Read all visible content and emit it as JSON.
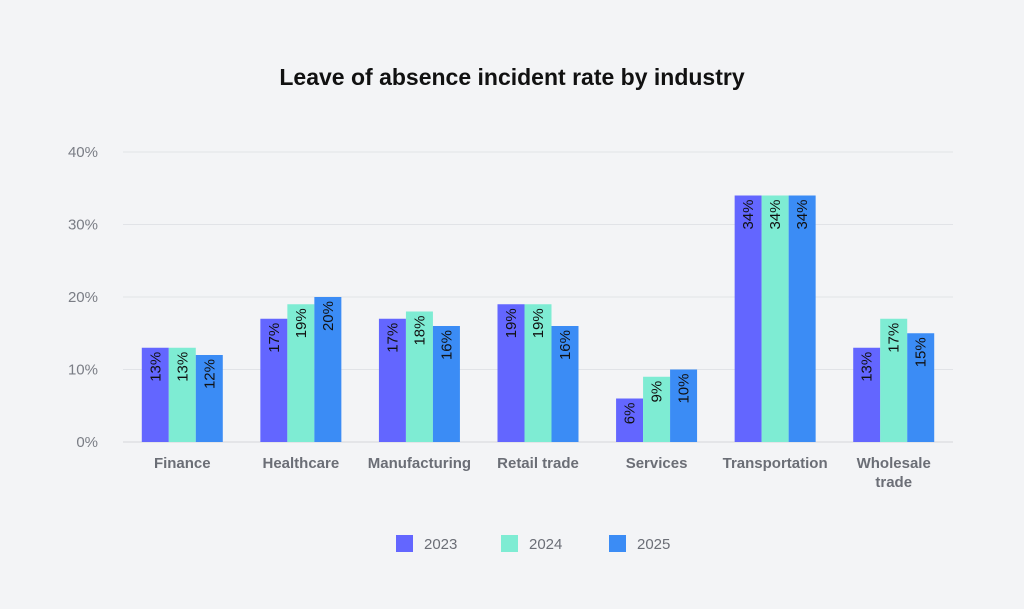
{
  "chart_data": {
    "type": "bar",
    "title": "Leave of absence incident rate by industry",
    "xlabel": "",
    "ylabel": "",
    "ylim": [
      0,
      40
    ],
    "yticks": [
      0,
      10,
      20,
      30,
      40
    ],
    "ytick_labels": [
      "0%",
      "10%",
      "20%",
      "30%",
      "40%"
    ],
    "grid": true,
    "legend_position": "bottom-center",
    "categories": [
      [
        "Finance"
      ],
      [
        "Healthcare"
      ],
      [
        "Manufacturing"
      ],
      [
        "Retail trade"
      ],
      [
        "Services"
      ],
      [
        "Transportation"
      ],
      [
        "Wholesale",
        "trade"
      ]
    ],
    "series": [
      {
        "name": "2023",
        "color": "#6366ff",
        "values": [
          13,
          17,
          17,
          19,
          6,
          34,
          13
        ]
      },
      {
        "name": "2024",
        "color": "#7eecd3",
        "values": [
          13,
          19,
          18,
          19,
          9,
          34,
          17
        ]
      },
      {
        "name": "2025",
        "color": "#3b8cf5",
        "values": [
          12,
          20,
          16,
          16,
          10,
          34,
          15
        ]
      }
    ],
    "value_suffix": "%"
  }
}
